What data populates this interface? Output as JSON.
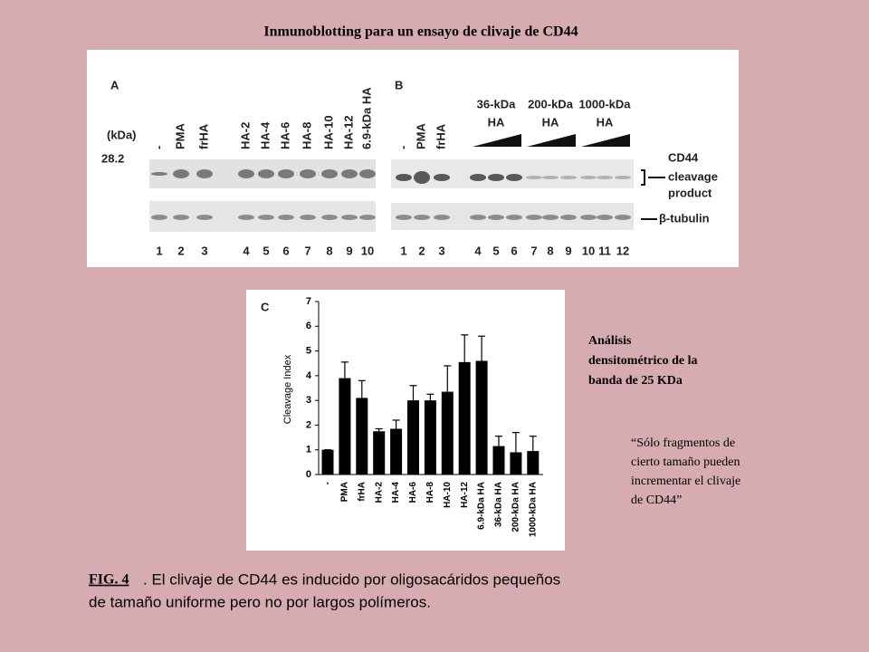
{
  "header": {
    "title": "Inmunoblotting para un ensayo de clivaje de CD44"
  },
  "panel_a": {
    "letter": "A",
    "unit": "(kDa)",
    "marker": "28.2",
    "lanes": [
      "-",
      "PMA",
      "frHA",
      "HA-2",
      "HA-4",
      "HA-6",
      "HA-8",
      "HA-10",
      "HA-12",
      "6.9-kDa HA"
    ],
    "numbers": [
      1,
      2,
      3,
      4,
      5,
      6,
      7,
      8,
      9,
      10
    ]
  },
  "panel_b": {
    "letter": "B",
    "lanes": [
      "-",
      "PMA",
      "frHA"
    ],
    "groups": [
      {
        "size": "36-kDa",
        "name": "HA"
      },
      {
        "size": "200-kDa",
        "name": "HA"
      },
      {
        "size": "1000-kDa",
        "name": "HA"
      }
    ],
    "numbers": [
      1,
      2,
      3,
      4,
      5,
      6,
      7,
      8,
      9,
      10,
      11,
      12
    ],
    "band_labels": [
      "CD44",
      "cleavage",
      "product",
      "β-tubulin"
    ]
  },
  "chart_data": {
    "type": "bar",
    "panel": "C",
    "ylabel": "Cleavage Index",
    "categories": [
      "-",
      "PMA",
      "frHA",
      "HA-2",
      "HA-4",
      "HA-6",
      "HA-8",
      "HA-10",
      "HA-12",
      "6.9-kDa HA",
      "36-kDa HA",
      "200-kDa HA",
      "1000-kDa HA"
    ],
    "values": [
      1,
      3.9,
      3.1,
      1.75,
      1.85,
      3,
      3,
      3.35,
      4.55,
      4.6,
      1.15,
      0.9,
      0.95
    ],
    "errors": [
      0,
      0.65,
      0.7,
      0.1,
      0.35,
      0.6,
      0.25,
      1.05,
      1.1,
      1,
      0.4,
      0.8,
      0.6
    ],
    "color": "#000000",
    "ylim": [
      0,
      7
    ],
    "yticks": [
      0,
      1,
      2,
      3,
      4,
      5,
      6,
      7
    ]
  },
  "notes": {
    "analysis": [
      "Análisis",
      "densitométrico de la",
      "banda de 25 KDa"
    ],
    "quote": [
      "“Sólo fragmentos de",
      "cierto tamaño pueden",
      "incrementar el clivaje",
      "de CD44”"
    ]
  },
  "caption": {
    "label": "FIG. 4",
    "line1": ". El clivaje de CD44  es inducido por oligosacáridos pequeños",
    "line2": "de tamaño uniforme pero no por largos polímeros."
  }
}
